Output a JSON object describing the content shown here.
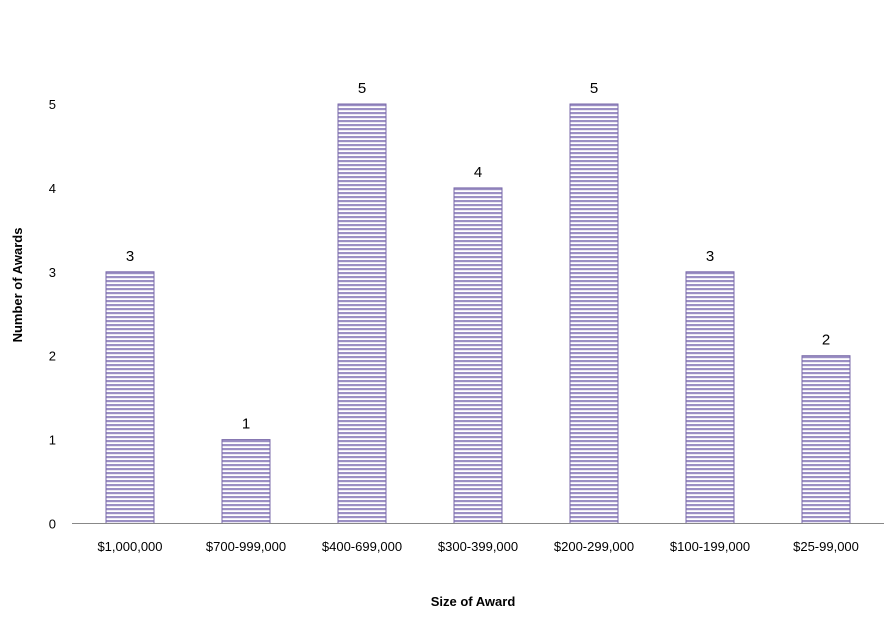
{
  "chart_data": {
    "type": "bar",
    "categories": [
      "$1,000,000",
      "$700-999,000",
      "$400-699,000",
      "$300-399,000",
      "$200-299,000",
      "$100-199,000",
      "$25-99,000"
    ],
    "values": [
      3,
      1,
      5,
      4,
      5,
      3,
      2
    ],
    "xlabel": "Size of Award",
    "ylabel": "Number of Awards",
    "ylim": [
      0,
      5
    ],
    "yticks": [
      "0",
      "1",
      "2",
      "3",
      "4",
      "5"
    ],
    "data_labels": [
      "3",
      "1",
      "5",
      "4",
      "5",
      "3",
      "2"
    ],
    "grid": false,
    "legend": "none",
    "bar_fill": "#9b8fc4",
    "bar_stripe": "#ffffff",
    "bar_edge": "#7a6aaa",
    "axis_color": "#888888"
  }
}
